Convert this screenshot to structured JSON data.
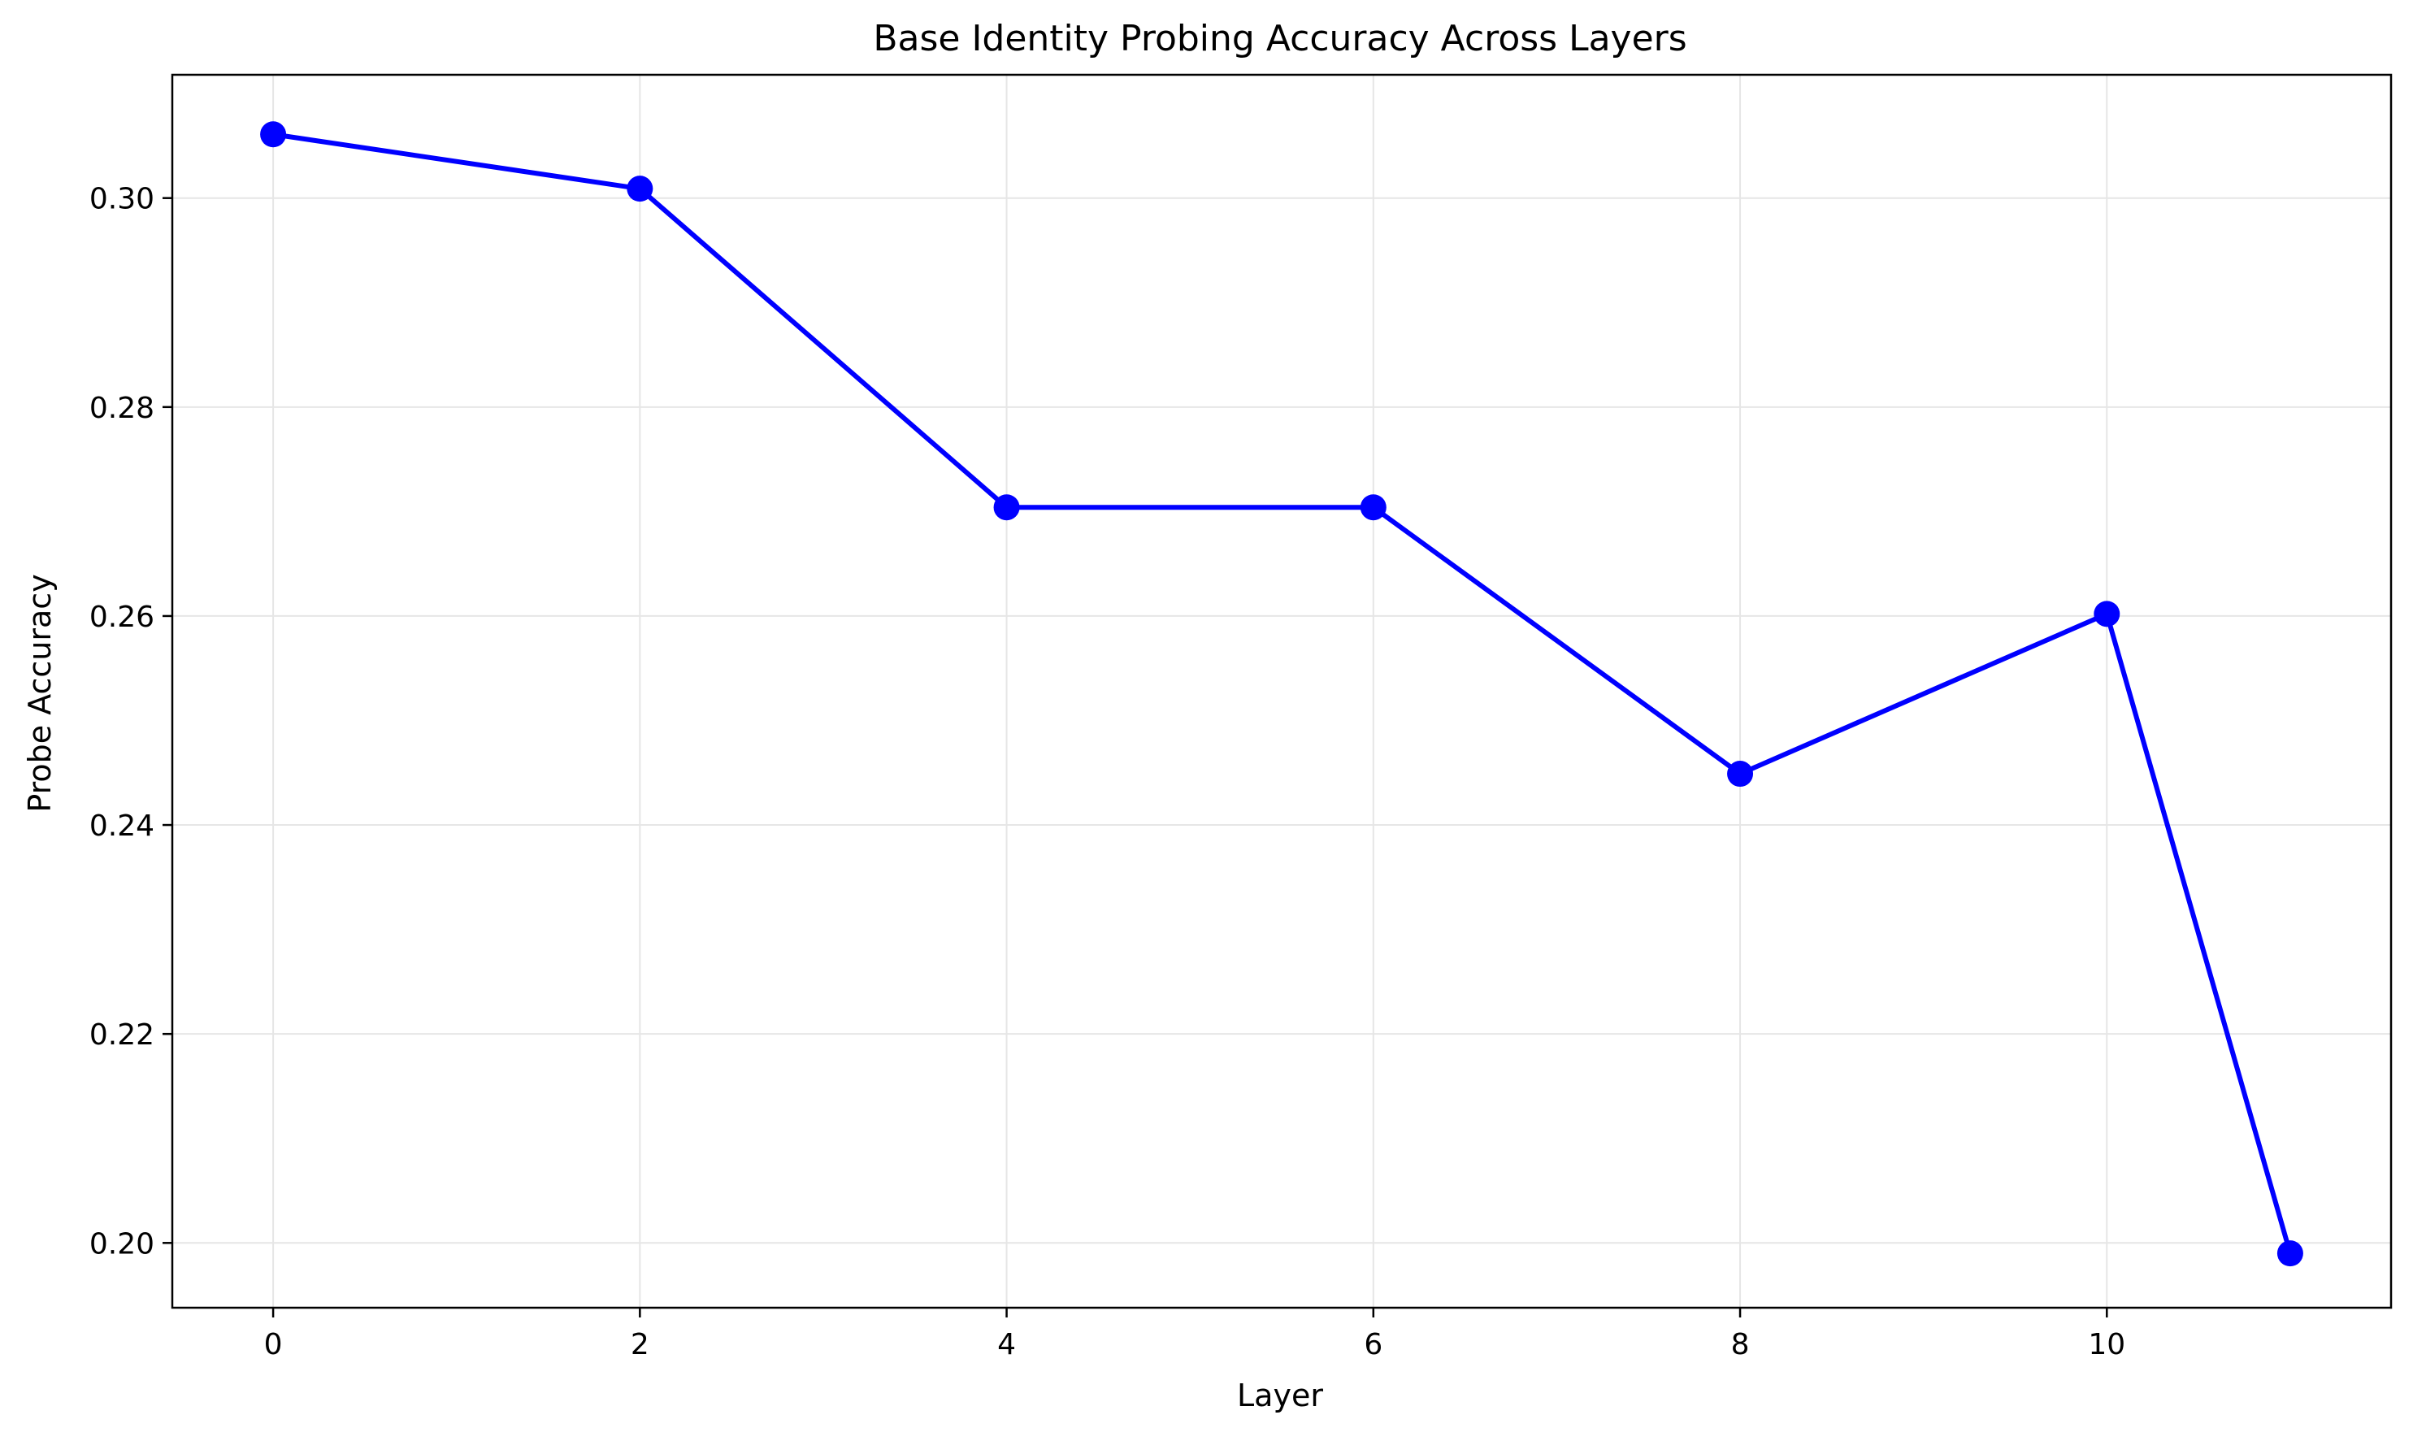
{
  "chart_data": {
    "type": "line",
    "title": "Base Identity Probing Accuracy Across Layers",
    "xlabel": "Layer",
    "ylabel": "Probe Accuracy",
    "x": [
      0,
      2,
      4,
      6,
      8,
      10,
      11
    ],
    "series": [
      {
        "values": [
          0.3061,
          0.3009,
          0.2704,
          0.2704,
          0.2449,
          0.2602,
          0.199
        ]
      }
    ],
    "xlim": [
      -0.55,
      11.55
    ],
    "ylim": [
      0.1938,
      0.3118
    ],
    "xticks": [
      0,
      2,
      4,
      6,
      8,
      10
    ],
    "xtick_labels": [
      "0",
      "2",
      "4",
      "6",
      "8",
      "10"
    ],
    "yticks": [
      0.2,
      0.22,
      0.24,
      0.26,
      0.28,
      0.3
    ],
    "ytick_labels": [
      "0.20",
      "0.22",
      "0.24",
      "0.26",
      "0.28",
      "0.30"
    ],
    "grid": true,
    "legend": "none",
    "colors": {
      "line": "#0000ff",
      "marker": "#0000ff",
      "grid": "#e6e6e6",
      "axes": "#000000"
    }
  }
}
